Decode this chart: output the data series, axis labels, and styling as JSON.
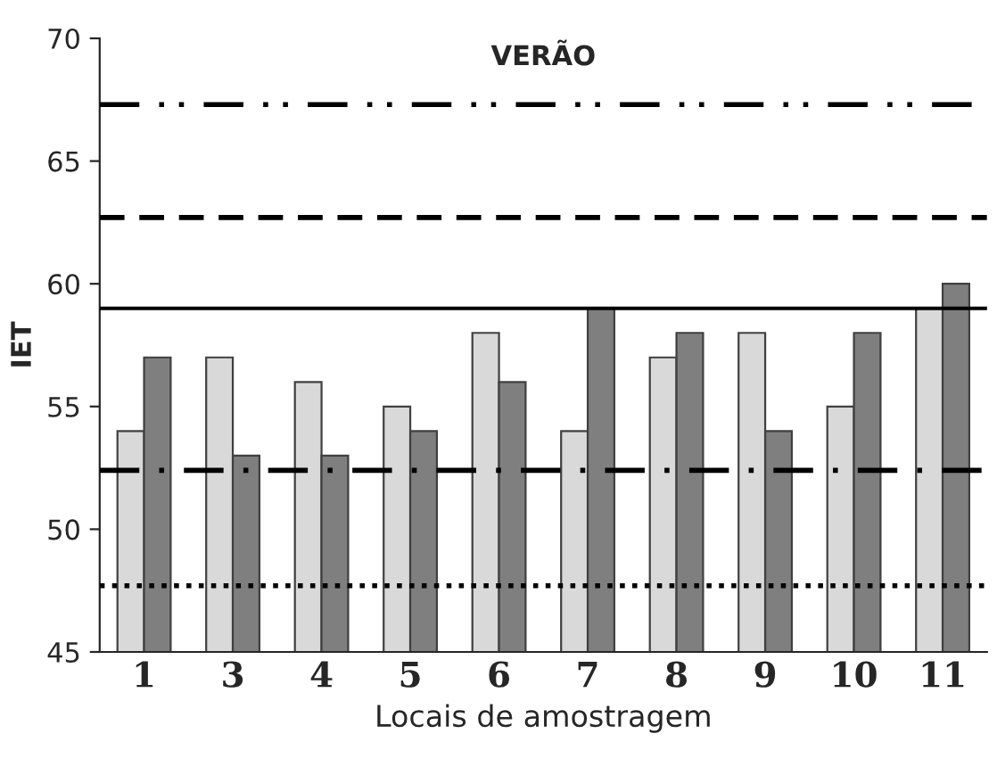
{
  "chart_data": {
    "type": "bar",
    "title": "VERÃO",
    "xlabel": "Locais de amostragem",
    "ylabel": "IET",
    "categories": [
      "1",
      "3",
      "4",
      "5",
      "6",
      "7",
      "8",
      "9",
      "10",
      "11"
    ],
    "series": [
      {
        "color": "#d9d9d9",
        "values": [
          54,
          57,
          56,
          55,
          58,
          54,
          57,
          58,
          55,
          59
        ]
      },
      {
        "color": "#7f7f7f",
        "values": [
          57,
          53,
          53,
          54,
          56,
          59,
          58,
          54,
          58,
          60
        ]
      }
    ],
    "ylim": [
      45,
      70
    ],
    "yticks": [
      45,
      50,
      55,
      60,
      65,
      70
    ],
    "grid": false,
    "legend": false,
    "ref_lines": [
      {
        "axis": "y",
        "value": 67.3,
        "line_style": "dashdotdot",
        "color": "#000000"
      },
      {
        "axis": "y",
        "value": 62.7,
        "line_style": "dashed",
        "color": "#000000"
      },
      {
        "axis": "y",
        "value": 59.0,
        "line_style": "solid",
        "color": "#000000"
      },
      {
        "axis": "y",
        "value": 52.4,
        "line_style": "dashdot",
        "color": "#000000"
      },
      {
        "axis": "y",
        "value": 47.7,
        "line_style": "dotted",
        "color": "#000000"
      }
    ]
  }
}
